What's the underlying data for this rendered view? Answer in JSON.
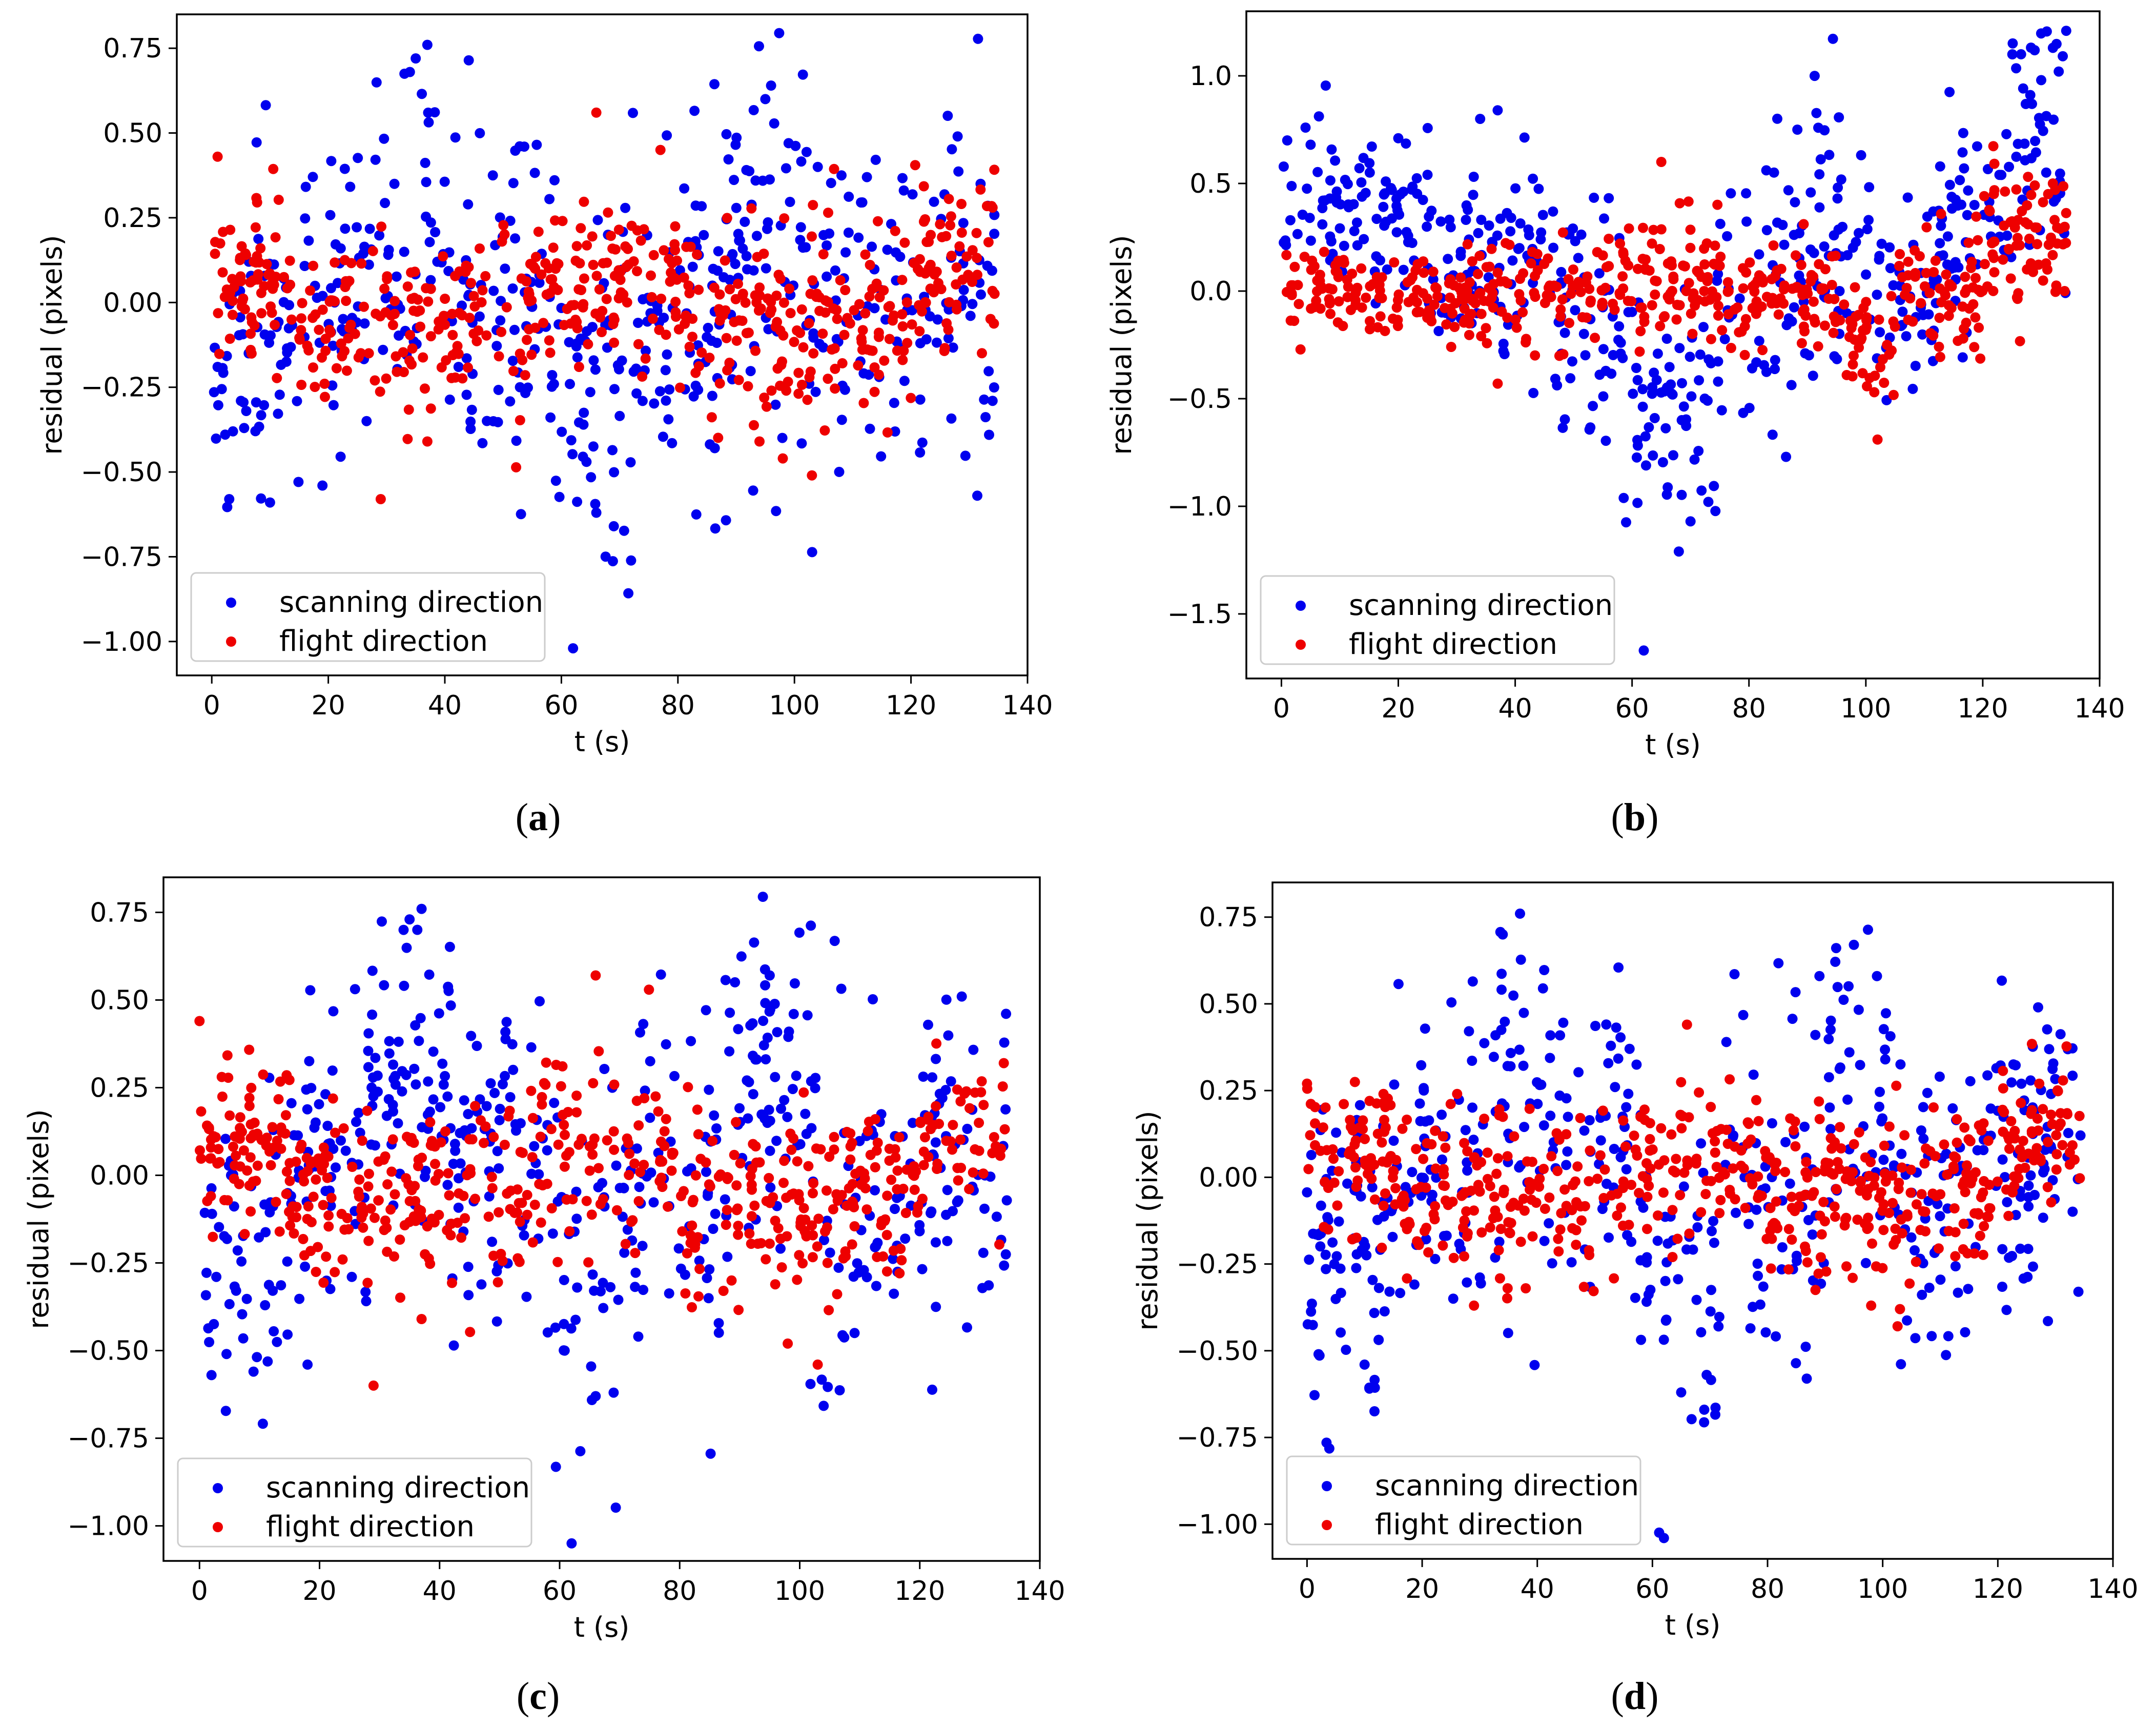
{
  "colors": {
    "scanning": "#0000ee",
    "flight": "#ee0000",
    "axes": "#000000",
    "legend_border": "#cccccc"
  },
  "legend": {
    "scanning_label": "scanning direction",
    "flight_label": "flight direction",
    "placement": "lower-left"
  },
  "chart_data": [
    {
      "id": "a",
      "type": "scatter",
      "caption_letter": "a",
      "caption_open": "(",
      "caption_close": ")",
      "xlabel": "t (s)",
      "ylabel": "residual (pixels)",
      "xlim": [
        -6,
        140
      ],
      "ylim": [
        -1.1,
        0.85
      ],
      "xticks": [
        0,
        20,
        40,
        60,
        80,
        100,
        120,
        140
      ],
      "xtick_labels": [
        "0",
        "20",
        "40",
        "60",
        "80",
        "100",
        "120",
        "140"
      ],
      "yticks": [
        -1.0,
        -0.75,
        -0.5,
        -0.25,
        0.0,
        0.25,
        0.5,
        0.75
      ],
      "ytick_labels": [
        "−1.00",
        "−0.75",
        "−0.50",
        "−0.25",
        "0.00",
        "0.25",
        "0.50",
        "0.75"
      ],
      "series": [
        {
          "name": "scanning direction",
          "color_key": "scanning",
          "seed": 11,
          "n": 520,
          "points": [
            [
              1,
              -0.19
            ],
            [
              3,
              -0.58
            ],
            [
              5,
              -0.29
            ],
            [
              10,
              -0.59
            ],
            [
              19,
              -0.54
            ],
            [
              34,
              0.68
            ],
            [
              35,
              0.72
            ],
            [
              37,
              0.76
            ],
            [
              62,
              -1.02
            ],
            [
              66,
              -0.62
            ],
            [
              69,
              -0.66
            ],
            [
              95,
              0.6
            ],
            [
              99,
              0.47
            ],
            [
              104,
              0.4
            ],
            [
              128,
              0.49
            ],
            [
              134,
              -0.29
            ]
          ]
        },
        {
          "name": "flight direction",
          "color_key": "flight",
          "seed": 23,
          "n": 560,
          "points": [
            [
              1,
              0.43
            ],
            [
              29,
              -0.58
            ],
            [
              37,
              -0.41
            ],
            [
              66,
              0.56
            ],
            [
              77,
              0.45
            ],
            [
              94,
              -0.41
            ],
            [
              98,
              -0.46
            ],
            [
              103,
              -0.51
            ],
            [
              134,
              0.28
            ]
          ]
        }
      ]
    },
    {
      "id": "b",
      "type": "scatter",
      "caption_letter": "b",
      "caption_open": "(",
      "caption_close": ")",
      "xlabel": "t (s)",
      "ylabel": "residual (pixels)",
      "xlim": [
        -6,
        140
      ],
      "ylim": [
        -1.8,
        1.3
      ],
      "xticks": [
        0,
        20,
        40,
        60,
        80,
        100,
        120,
        140
      ],
      "xtick_labels": [
        "0",
        "20",
        "40",
        "60",
        "80",
        "100",
        "120",
        "140"
      ],
      "yticks": [
        -1.5,
        -1.0,
        -0.5,
        0.0,
        0.5,
        1.0
      ],
      "ytick_labels": [
        "−1.5",
        "−1.0",
        "−0.5",
        "0.0",
        "0.5",
        "1.0"
      ],
      "series": [
        {
          "name": "scanning direction",
          "color_key": "scanning",
          "seed": 37,
          "n": 520,
          "points": [
            [
              1,
              0.7
            ],
            [
              5,
              0.68
            ],
            [
              20,
              0.71
            ],
            [
              34,
              0.8
            ],
            [
              37,
              0.84
            ],
            [
              62,
              -1.67
            ],
            [
              68,
              -1.21
            ],
            [
              70,
              -1.07
            ],
            [
              130,
              0.98
            ],
            [
              132,
              1.13
            ],
            [
              133,
              1.02
            ]
          ]
        },
        {
          "name": "flight direction",
          "color_key": "flight",
          "seed": 41,
          "n": 560,
          "points": [
            [
              65,
              0.6
            ],
            [
              37,
              -0.43
            ],
            [
              102,
              -0.69
            ],
            [
              132,
              0.5
            ],
            [
              134,
              0.0
            ]
          ]
        }
      ]
    },
    {
      "id": "c",
      "type": "scatter",
      "caption_letter": "c",
      "caption_open": "(",
      "caption_close": ")",
      "xlabel": "t (s)",
      "ylabel": "residual (pixels)",
      "xlim": [
        -6,
        140
      ],
      "ylim": [
        -1.1,
        0.85
      ],
      "xticks": [
        0,
        20,
        40,
        60,
        80,
        100,
        120,
        140
      ],
      "xtick_labels": [
        "0",
        "20",
        "40",
        "60",
        "80",
        "100",
        "120",
        "140"
      ],
      "yticks": [
        -1.0,
        -0.75,
        -0.5,
        -0.25,
        0.0,
        0.25,
        0.5,
        0.75
      ],
      "ytick_labels": [
        "−1.00",
        "−0.75",
        "−0.50",
        "−0.25",
        "0.00",
        "0.25",
        "0.50",
        "0.75"
      ],
      "series": [
        {
          "name": "scanning direction",
          "color_key": "scanning",
          "seed": 53,
          "n": 520,
          "points": [
            [
              2,
              -0.57
            ],
            [
              9,
              -0.56
            ],
            [
              18,
              -0.54
            ],
            [
              34,
              0.7
            ],
            [
              35,
              0.73
            ],
            [
              37,
              0.76
            ],
            [
              62,
              -1.05
            ],
            [
              66,
              -0.63
            ],
            [
              69,
              -0.62
            ],
            [
              95,
              0.57
            ],
            [
              99,
              0.46
            ],
            [
              127,
              0.51
            ]
          ]
        },
        {
          "name": "flight direction",
          "color_key": "flight",
          "seed": 59,
          "n": 560,
          "points": [
            [
              0,
              0.44
            ],
            [
              29,
              -0.6
            ],
            [
              37,
              -0.41
            ],
            [
              66,
              0.57
            ],
            [
              98,
              -0.48
            ],
            [
              103,
              -0.54
            ],
            [
              134,
              0.32
            ]
          ]
        }
      ]
    },
    {
      "id": "d",
      "type": "scatter",
      "caption_letter": "d",
      "caption_open": "(",
      "caption_close": ")",
      "xlabel": "t (s)",
      "ylabel": "residual (pixels)",
      "xlim": [
        -6,
        140
      ],
      "ylim": [
        -1.1,
        0.85
      ],
      "xticks": [
        0,
        20,
        40,
        60,
        80,
        100,
        120,
        140
      ],
      "xtick_labels": [
        "0",
        "20",
        "40",
        "60",
        "80",
        "100",
        "120",
        "140"
      ],
      "yticks": [
        -1.0,
        -0.75,
        -0.5,
        -0.25,
        0.0,
        0.25,
        0.5,
        0.75
      ],
      "ytick_labels": [
        "−1.00",
        "−0.75",
        "−0.50",
        "−0.25",
        "0.00",
        "0.25",
        "0.50",
        "0.75"
      ],
      "series": [
        {
          "name": "scanning direction",
          "color_key": "scanning",
          "seed": 67,
          "n": 520,
          "points": [
            [
              2,
              -0.51
            ],
            [
              10,
              -0.54
            ],
            [
              34,
              0.7
            ],
            [
              37,
              0.76
            ],
            [
              62,
              -1.04
            ],
            [
              65,
              -0.62
            ],
            [
              69,
              -0.67
            ],
            [
              95,
              0.67
            ],
            [
              99,
              0.58
            ],
            [
              127,
              0.49
            ],
            [
              134,
              -0.33
            ]
          ]
        },
        {
          "name": "flight direction",
          "color_key": "flight",
          "seed": 71,
          "n": 560,
          "points": [
            [
              0,
              0.27
            ],
            [
              29,
              -0.37
            ],
            [
              38,
              -0.32
            ],
            [
              66,
              0.44
            ],
            [
              98,
              -0.37
            ],
            [
              103,
              -0.38
            ]
          ]
        }
      ]
    }
  ]
}
